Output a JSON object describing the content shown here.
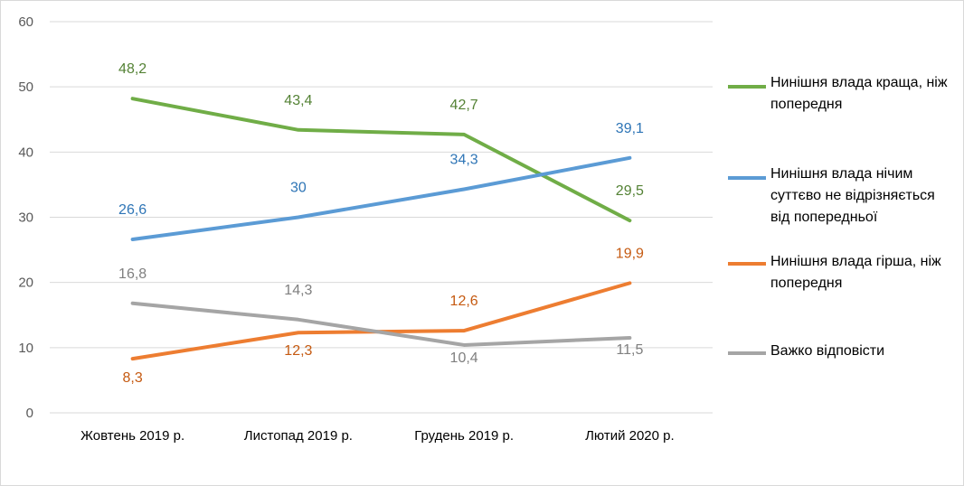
{
  "chart_data": {
    "type": "line",
    "categories": [
      "Жовтень 2019 р.",
      "Листопад 2019 р.",
      "Грудень 2019 р.",
      "Лютий 2020 р."
    ],
    "ylim": [
      0,
      60
    ],
    "yticks": [
      "0",
      "10",
      "20",
      "30",
      "40",
      "50",
      "60"
    ],
    "grid": true,
    "legend_position": "right",
    "series": [
      {
        "name": "Нинішня влада краща, ніж попередня",
        "color": "#70ad47",
        "label_color": "#548235",
        "values": [
          48.2,
          43.4,
          42.7,
          29.5
        ],
        "labels": [
          "48,2",
          "43,4",
          "42,7",
          "29,5"
        ]
      },
      {
        "name": "Нинішня влада нічим суттєво не відрізняється від попередньої",
        "color": "#5b9bd5",
        "label_color": "#2e75b6",
        "values": [
          26.6,
          30,
          34.3,
          39.1
        ],
        "labels": [
          "26,6",
          "30",
          "34,3",
          "39,1"
        ]
      },
      {
        "name": "Нинішня влада гірша, ніж попередня",
        "color": "#ed7d31",
        "label_color": "#c55a11",
        "values": [
          8.3,
          12.3,
          12.6,
          19.9
        ],
        "labels": [
          "8,3",
          "12,3",
          "12,6",
          "19,9"
        ]
      },
      {
        "name": "Важко відповісти",
        "color": "#a5a5a5",
        "label_color": "#7f7f7f",
        "values": [
          16.8,
          14.3,
          10.4,
          11.5
        ],
        "labels": [
          "16,8",
          "14,3",
          "10,4",
          "11,5"
        ]
      }
    ]
  }
}
